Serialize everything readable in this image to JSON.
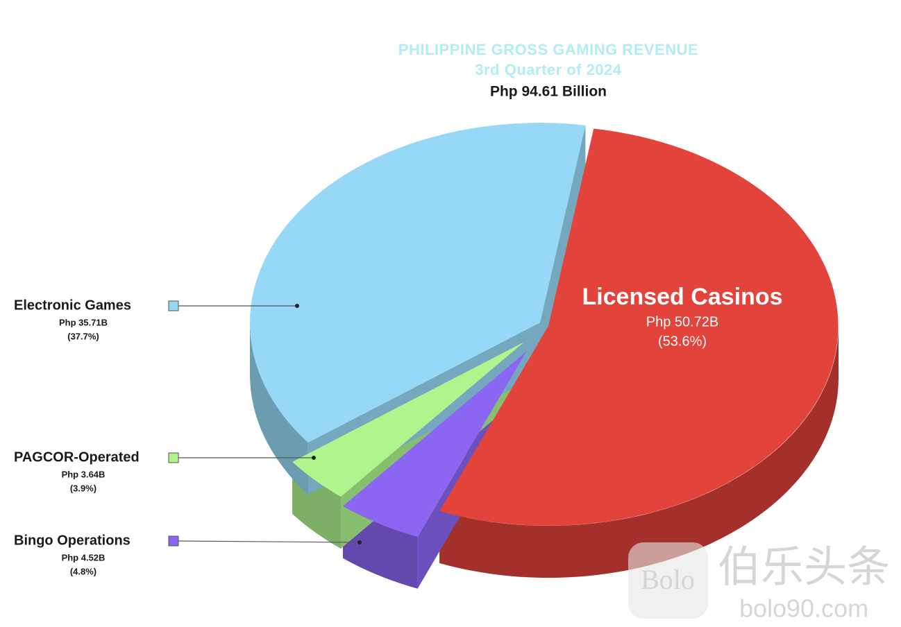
{
  "chart_data": {
    "type": "pie",
    "title": "PHILIPPINE GROSS GAMING REVENUE",
    "subtitle": "3rd Quarter of 2024",
    "total_label": "Php 94.61 Billion",
    "categories": [
      "Licensed Casinos",
      "Bingo Operations",
      "PAGCOR-Operated",
      "Electronic Games"
    ],
    "values": [
      50.72,
      4.52,
      3.64,
      35.71
    ],
    "value_labels": [
      "Php 50.72B",
      "Php 4.52B",
      "Php 3.64B",
      "Php 35.71B"
    ],
    "percent_labels": [
      "(53.6%)",
      "(4.8%)",
      "(3.9%)",
      "(37.7%)"
    ],
    "colors": [
      "#e2433a",
      "#8a66f2",
      "#aef58e",
      "#96d8f5"
    ]
  },
  "watermark": {
    "logo": "Bolo",
    "text": "伯乐头条",
    "url": "bolo90.com"
  }
}
